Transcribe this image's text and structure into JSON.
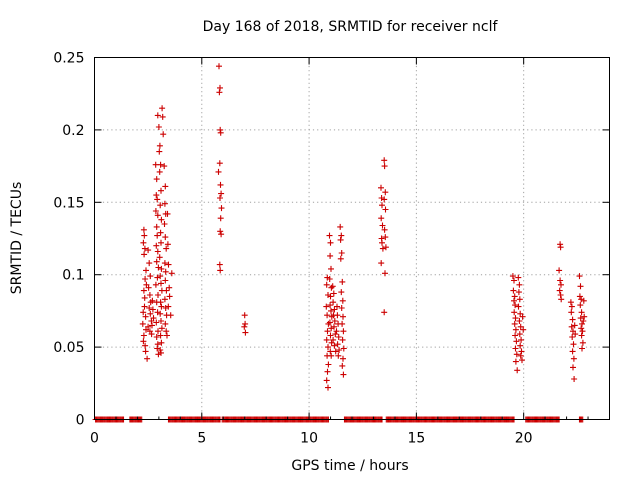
{
  "chart_data": {
    "type": "scatter",
    "title": "Day 168 of 2018, SRMTID for receiver nclf",
    "xlabel": "GPS time / hours",
    "ylabel": "SRMTID / TECUs",
    "xlim": [
      0,
      24
    ],
    "ylim": [
      0,
      0.25
    ],
    "xticks": [
      0,
      5,
      10,
      15,
      20
    ],
    "xtick_labels": [
      "0",
      "5",
      "10",
      "15",
      "20"
    ],
    "yticks": [
      0,
      0.05,
      0.1,
      0.15,
      0.2,
      0.25
    ],
    "ytick_labels": [
      "0",
      "0.05",
      "0.1",
      "0.15",
      "0.2",
      "0.25"
    ],
    "grid": true,
    "marker": "plus",
    "color": "#cc0000",
    "series": [
      {
        "name": "SRMTID",
        "zero_intervals": [
          [
            0.05,
            1.35
          ],
          [
            1.65,
            2.2
          ],
          [
            3.45,
            5.85
          ],
          [
            5.95,
            10.9
          ],
          [
            11.65,
            13.4
          ],
          [
            13.6,
            19.55
          ],
          [
            20.1,
            21.65
          ],
          [
            22.6,
            22.75
          ]
        ],
        "points": [
          [
            2.3,
            0.131
          ],
          [
            2.32,
            0.127
          ],
          [
            2.28,
            0.122
          ],
          [
            2.35,
            0.118
          ],
          [
            2.31,
            0.114
          ],
          [
            2.4,
            0.103
          ],
          [
            2.36,
            0.097
          ],
          [
            2.42,
            0.093
          ],
          [
            2.3,
            0.089
          ],
          [
            2.34,
            0.084
          ],
          [
            2.33,
            0.078
          ],
          [
            2.27,
            0.074
          ],
          [
            2.38,
            0.071
          ],
          [
            2.25,
            0.066
          ],
          [
            2.4,
            0.062
          ],
          [
            2.3,
            0.058
          ],
          [
            2.28,
            0.054
          ],
          [
            2.36,
            0.051
          ],
          [
            2.38,
            0.047
          ],
          [
            2.45,
            0.042
          ],
          [
            2.5,
            0.117
          ],
          [
            2.55,
            0.108
          ],
          [
            2.6,
            0.099
          ],
          [
            2.52,
            0.091
          ],
          [
            2.58,
            0.086
          ],
          [
            2.62,
            0.081
          ],
          [
            2.55,
            0.077
          ],
          [
            2.6,
            0.073
          ],
          [
            2.65,
            0.068
          ],
          [
            2.5,
            0.064
          ],
          [
            2.58,
            0.061
          ],
          [
            2.66,
            0.059
          ],
          [
            2.7,
            0.082
          ],
          [
            2.72,
            0.076
          ],
          [
            2.68,
            0.065
          ],
          [
            2.75,
            0.07
          ],
          [
            2.85,
            0.176
          ],
          [
            2.9,
            0.166
          ],
          [
            2.88,
            0.155
          ],
          [
            2.92,
            0.152
          ],
          [
            2.86,
            0.144
          ],
          [
            2.95,
            0.141
          ],
          [
            2.9,
            0.133
          ],
          [
            2.92,
            0.127
          ],
          [
            2.88,
            0.12
          ],
          [
            2.95,
            0.116
          ],
          [
            2.9,
            0.109
          ],
          [
            2.98,
            0.105
          ],
          [
            2.93,
            0.098
          ],
          [
            2.86,
            0.093
          ],
          [
            2.96,
            0.086
          ],
          [
            2.9,
            0.081
          ],
          [
            2.94,
            0.074
          ],
          [
            2.88,
            0.067
          ],
          [
            2.96,
            0.061
          ],
          [
            2.9,
            0.057
          ],
          [
            2.95,
            0.052
          ],
          [
            2.92,
            0.049
          ],
          [
            2.98,
            0.045
          ],
          [
            2.95,
            0.21
          ],
          [
            3.0,
            0.202
          ],
          [
            3.05,
            0.189
          ],
          [
            3.02,
            0.185
          ],
          [
            3.08,
            0.176
          ],
          [
            3.04,
            0.171
          ],
          [
            3.1,
            0.158
          ],
          [
            3.06,
            0.148
          ],
          [
            3.12,
            0.138
          ],
          [
            3.08,
            0.129
          ],
          [
            3.1,
            0.122
          ],
          [
            3.04,
            0.112
          ],
          [
            3.12,
            0.104
          ],
          [
            3.06,
            0.099
          ],
          [
            3.1,
            0.094
          ],
          [
            3.14,
            0.089
          ],
          [
            3.08,
            0.081
          ],
          [
            3.12,
            0.078
          ],
          [
            3.06,
            0.073
          ],
          [
            3.1,
            0.068
          ],
          [
            3.14,
            0.063
          ],
          [
            3.08,
            0.058
          ],
          [
            3.12,
            0.053
          ],
          [
            3.06,
            0.048
          ],
          [
            3.1,
            0.046
          ],
          [
            3.15,
            0.215
          ],
          [
            3.18,
            0.209
          ],
          [
            3.2,
            0.197
          ],
          [
            3.25,
            0.175
          ],
          [
            3.3,
            0.161
          ],
          [
            3.28,
            0.149
          ],
          [
            3.32,
            0.142
          ],
          [
            3.26,
            0.135
          ],
          [
            3.3,
            0.126
          ],
          [
            3.34,
            0.118
          ],
          [
            3.28,
            0.108
          ],
          [
            3.32,
            0.102
          ],
          [
            3.3,
            0.096
          ],
          [
            3.35,
            0.089
          ],
          [
            3.28,
            0.083
          ],
          [
            3.32,
            0.077
          ],
          [
            3.36,
            0.072
          ],
          [
            3.3,
            0.066
          ],
          [
            3.34,
            0.061
          ],
          [
            3.38,
            0.058
          ],
          [
            3.4,
            0.142
          ],
          [
            3.42,
            0.121
          ],
          [
            3.45,
            0.107
          ],
          [
            3.48,
            0.091
          ],
          [
            3.5,
            0.085
          ],
          [
            3.44,
            0.078
          ],
          [
            3.55,
            0.072
          ],
          [
            3.6,
            0.101
          ],
          [
            5.8,
            0.244
          ],
          [
            5.85,
            0.229
          ],
          [
            5.82,
            0.226
          ],
          [
            5.86,
            0.2
          ],
          [
            5.88,
            0.198
          ],
          [
            5.84,
            0.177
          ],
          [
            5.78,
            0.171
          ],
          [
            5.87,
            0.162
          ],
          [
            5.9,
            0.156
          ],
          [
            5.85,
            0.153
          ],
          [
            5.92,
            0.146
          ],
          [
            5.88,
            0.139
          ],
          [
            5.86,
            0.13
          ],
          [
            5.9,
            0.128
          ],
          [
            5.84,
            0.107
          ],
          [
            5.86,
            0.103
          ],
          [
            7.0,
            0.072
          ],
          [
            7.02,
            0.066
          ],
          [
            6.98,
            0.064
          ],
          [
            7.03,
            0.06
          ],
          [
            10.85,
            0.098
          ],
          [
            10.82,
            0.093
          ],
          [
            10.88,
            0.086
          ],
          [
            10.8,
            0.078
          ],
          [
            10.84,
            0.072
          ],
          [
            10.9,
            0.066
          ],
          [
            10.86,
            0.061
          ],
          [
            10.82,
            0.055
          ],
          [
            10.88,
            0.05
          ],
          [
            10.84,
            0.044
          ],
          [
            10.9,
            0.038
          ],
          [
            10.86,
            0.033
          ],
          [
            10.82,
            0.027
          ],
          [
            10.88,
            0.022
          ],
          [
            10.95,
            0.127
          ],
          [
            11.0,
            0.122
          ],
          [
            10.98,
            0.113
          ],
          [
            11.02,
            0.104
          ],
          [
            10.96,
            0.097
          ],
          [
            11.04,
            0.091
          ],
          [
            11.0,
            0.085
          ],
          [
            10.98,
            0.079
          ],
          [
            11.02,
            0.075
          ],
          [
            11.06,
            0.071
          ],
          [
            10.97,
            0.067
          ],
          [
            11.03,
            0.063
          ],
          [
            11.0,
            0.058
          ],
          [
            11.05,
            0.053
          ],
          [
            10.99,
            0.047
          ],
          [
            11.03,
            0.044
          ],
          [
            11.1,
            0.092
          ],
          [
            11.15,
            0.087
          ],
          [
            11.12,
            0.081
          ],
          [
            11.18,
            0.076
          ],
          [
            11.14,
            0.072
          ],
          [
            11.2,
            0.068
          ],
          [
            11.16,
            0.064
          ],
          [
            11.22,
            0.059
          ],
          [
            11.12,
            0.055
          ],
          [
            11.18,
            0.051
          ],
          [
            11.24,
            0.047
          ],
          [
            11.3,
            0.078
          ],
          [
            11.32,
            0.072
          ],
          [
            11.35,
            0.066
          ],
          [
            11.28,
            0.061
          ],
          [
            11.38,
            0.057
          ],
          [
            11.33,
            0.052
          ],
          [
            11.4,
            0.048
          ],
          [
            11.36,
            0.044
          ],
          [
            11.45,
            0.133
          ],
          [
            11.5,
            0.127
          ],
          [
            11.47,
            0.124
          ],
          [
            11.52,
            0.115
          ],
          [
            11.48,
            0.111
          ],
          [
            11.55,
            0.095
          ],
          [
            11.5,
            0.088
          ],
          [
            11.57,
            0.082
          ],
          [
            11.52,
            0.077
          ],
          [
            11.58,
            0.071
          ],
          [
            11.54,
            0.066
          ],
          [
            11.6,
            0.061
          ],
          [
            11.56,
            0.055
          ],
          [
            11.62,
            0.049
          ],
          [
            11.58,
            0.042
          ],
          [
            11.55,
            0.037
          ],
          [
            11.6,
            0.031
          ],
          [
            13.35,
            0.16
          ],
          [
            13.38,
            0.153
          ],
          [
            13.4,
            0.148
          ],
          [
            13.36,
            0.139
          ],
          [
            13.42,
            0.134
          ],
          [
            13.38,
            0.125
          ],
          [
            13.4,
            0.122
          ],
          [
            13.44,
            0.118
          ],
          [
            13.36,
            0.108
          ],
          [
            13.5,
            0.179
          ],
          [
            13.52,
            0.175
          ],
          [
            13.55,
            0.157
          ],
          [
            13.5,
            0.152
          ],
          [
            13.56,
            0.145
          ],
          [
            13.52,
            0.131
          ],
          [
            13.55,
            0.126
          ],
          [
            13.58,
            0.119
          ],
          [
            13.54,
            0.101
          ],
          [
            13.5,
            0.074
          ],
          [
            19.5,
            0.099
          ],
          [
            19.55,
            0.096
          ],
          [
            19.52,
            0.089
          ],
          [
            19.58,
            0.085
          ],
          [
            19.55,
            0.082
          ],
          [
            19.6,
            0.079
          ],
          [
            19.56,
            0.074
          ],
          [
            19.62,
            0.07
          ],
          [
            19.58,
            0.066
          ],
          [
            19.64,
            0.062
          ],
          [
            19.6,
            0.058
          ],
          [
            19.66,
            0.054
          ],
          [
            19.62,
            0.049
          ],
          [
            19.68,
            0.045
          ],
          [
            19.64,
            0.04
          ],
          [
            19.7,
            0.034
          ],
          [
            19.75,
            0.098
          ],
          [
            19.8,
            0.093
          ],
          [
            19.78,
            0.088
          ],
          [
            19.82,
            0.083
          ],
          [
            19.76,
            0.078
          ],
          [
            19.84,
            0.073
          ],
          [
            19.8,
            0.068
          ],
          [
            19.86,
            0.064
          ],
          [
            19.82,
            0.059
          ],
          [
            19.88,
            0.055
          ],
          [
            19.84,
            0.051
          ],
          [
            19.9,
            0.047
          ],
          [
            19.86,
            0.044
          ],
          [
            19.92,
            0.041
          ],
          [
            19.95,
            0.071
          ],
          [
            19.98,
            0.062
          ],
          [
            21.7,
            0.121
          ],
          [
            21.72,
            0.119
          ],
          [
            21.65,
            0.103
          ],
          [
            21.7,
            0.096
          ],
          [
            21.74,
            0.093
          ],
          [
            21.68,
            0.089
          ],
          [
            21.72,
            0.086
          ],
          [
            21.75,
            0.083
          ],
          [
            22.2,
            0.081
          ],
          [
            22.25,
            0.078
          ],
          [
            22.22,
            0.074
          ],
          [
            22.28,
            0.069
          ],
          [
            22.24,
            0.064
          ],
          [
            22.3,
            0.061
          ],
          [
            22.26,
            0.057
          ],
          [
            22.32,
            0.052
          ],
          [
            22.28,
            0.047
          ],
          [
            22.34,
            0.042
          ],
          [
            22.3,
            0.036
          ],
          [
            22.35,
            0.028
          ],
          [
            22.38,
            0.065
          ],
          [
            22.4,
            0.059
          ],
          [
            22.6,
            0.099
          ],
          [
            22.65,
            0.092
          ],
          [
            22.62,
            0.085
          ],
          [
            22.68,
            0.083
          ],
          [
            22.64,
            0.079
          ],
          [
            22.7,
            0.074
          ],
          [
            22.66,
            0.07
          ],
          [
            22.72,
            0.066
          ],
          [
            22.68,
            0.063
          ],
          [
            22.74,
            0.061
          ],
          [
            22.7,
            0.058
          ],
          [
            22.76,
            0.053
          ],
          [
            22.72,
            0.049
          ],
          [
            22.78,
            0.068
          ],
          [
            22.8,
            0.082
          ],
          [
            22.82,
            0.071
          ]
        ]
      }
    ]
  }
}
